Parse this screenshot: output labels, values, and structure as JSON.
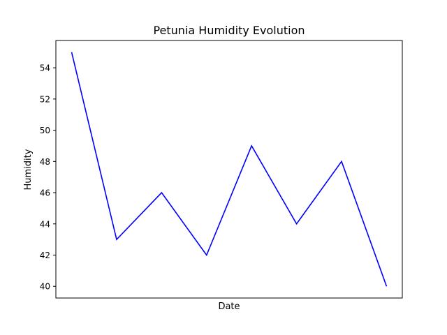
{
  "chart_data": {
    "type": "line",
    "title": "Petunia Humidity Evolution",
    "xlabel": "Date",
    "ylabel": "Humidity",
    "x": [
      1,
      2,
      3,
      4,
      5,
      6,
      7,
      8
    ],
    "series": [
      {
        "values": [
          55,
          43,
          46,
          42,
          49,
          44,
          48,
          40
        ],
        "color": "#0000ff"
      }
    ],
    "yticks": [
      40,
      42,
      44,
      46,
      48,
      50,
      52,
      54
    ],
    "ylim": [
      39.25,
      55.75
    ],
    "xticks_shown": false,
    "grid": false
  }
}
